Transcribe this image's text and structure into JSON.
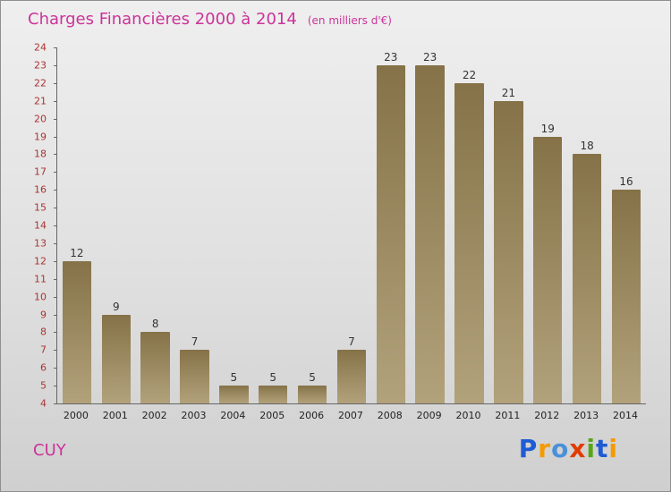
{
  "title": {
    "text": "Charges Financières 2000 à 2014",
    "subtitle": "(en milliers d'€)"
  },
  "footer": {
    "company": "CUY",
    "logo_letters": [
      {
        "char": "P",
        "color": "#1f5bd4"
      },
      {
        "char": "r",
        "color": "#f59b00"
      },
      {
        "char": "o",
        "color": "#4a90d9"
      },
      {
        "char": "x",
        "color": "#e03c00"
      },
      {
        "char": "i",
        "color": "#58a618"
      },
      {
        "char": "t",
        "color": "#1f5bd4"
      },
      {
        "char": "i",
        "color": "#f59b00"
      }
    ]
  },
  "colors": {
    "title": "#cc3399",
    "y_label": "#aa3333",
    "x_label": "#222222",
    "value_label": "#333333",
    "axis": "#666666",
    "bar_top": "#857248",
    "bar_bottom": "#b2a27b",
    "company": "#cc3399"
  },
  "chart_data": {
    "type": "bar",
    "title": "Charges Financières 2000 à 2014",
    "subtitle": "(en milliers d'€)",
    "categories": [
      "2000",
      "2001",
      "2002",
      "2003",
      "2004",
      "2005",
      "2006",
      "2007",
      "2008",
      "2009",
      "2010",
      "2011",
      "2012",
      "2013",
      "2014"
    ],
    "values": [
      12,
      9,
      8,
      7,
      5,
      5,
      5,
      7,
      23,
      23,
      22,
      21,
      19,
      18,
      16
    ],
    "xlabel": "",
    "ylabel": "",
    "ylim": [
      4,
      24
    ],
    "ytick_step": 1,
    "grid": false,
    "legend": false
  }
}
